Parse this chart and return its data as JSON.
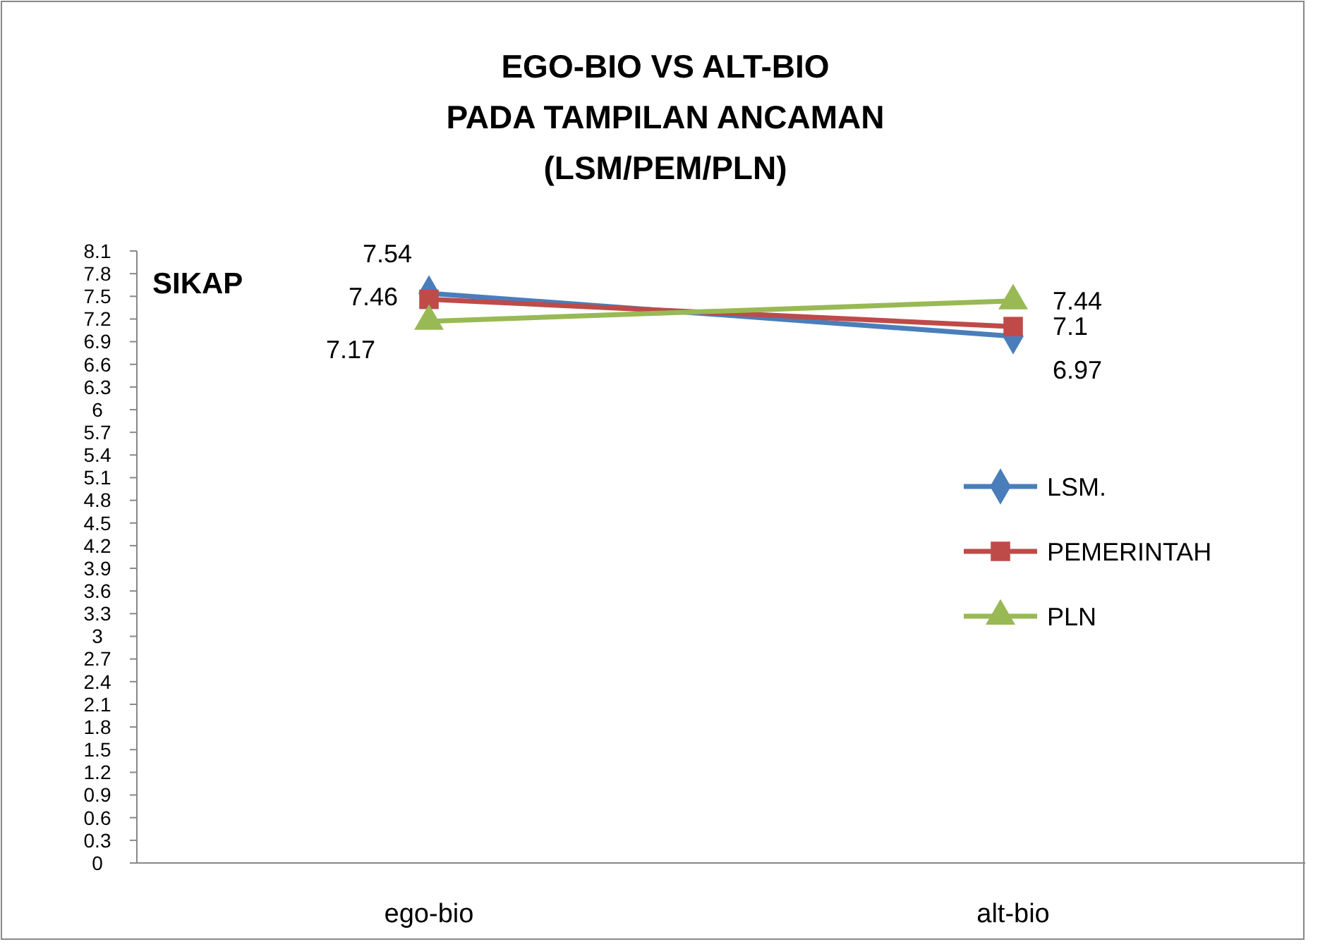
{
  "chart_data": {
    "type": "line",
    "title": "EGO-BIO VS ALT-BIO\nPADA TAMPILAN ANCAMAN\n(LSM/PEM/PLN)",
    "ylabel": "SIKAP",
    "categories": [
      "ego-bio",
      "alt-bio"
    ],
    "series": [
      {
        "name": "LSM.",
        "color": "#4a7ebb",
        "marker": "diamond",
        "values": [
          7.54,
          6.97
        ]
      },
      {
        "name": "PEMERINTAH",
        "color": "#be4b48",
        "marker": "square",
        "values": [
          7.46,
          7.1
        ]
      },
      {
        "name": "PLN",
        "color": "#98b954",
        "marker": "triangle",
        "values": [
          7.17,
          7.44
        ]
      }
    ],
    "ylim": [
      0,
      8.1
    ],
    "yticks": [
      0,
      0.3,
      0.6,
      0.9,
      1.2,
      1.5,
      1.8,
      2.1,
      2.4,
      2.7,
      3,
      3.3,
      3.6,
      3.9,
      4.2,
      4.5,
      4.8,
      5.1,
      5.4,
      5.7,
      6,
      6.3,
      6.6,
      6.9,
      7.2,
      7.5,
      7.8,
      8.1
    ],
    "data_labels": true,
    "legend": "right",
    "grid": false
  }
}
